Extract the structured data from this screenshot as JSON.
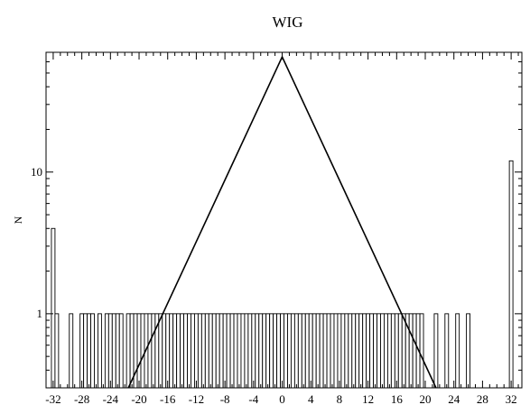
{
  "chart_data": {
    "type": "bar",
    "title": "WIG",
    "xlabel": "",
    "ylabel": "N",
    "yscale": "log",
    "xlim": [
      -33,
      33.5
    ],
    "ylim": [
      0.3,
      70
    ],
    "grid": false,
    "legend": "none",
    "x_ticks": [
      -32,
      -28,
      -24,
      -20,
      -16,
      -12,
      -8,
      -4,
      0,
      4,
      8,
      12,
      16,
      20,
      24,
      28,
      32
    ],
    "x_tick_labels": [
      "-32",
      "-28",
      "-24",
      "-20",
      "-16",
      "-12",
      "-8",
      "-4",
      "0",
      "4",
      "8",
      "12",
      "16",
      "20",
      "24",
      "28",
      "32"
    ],
    "y_tick_labels": [
      {
        "value": 1,
        "label": "1"
      },
      {
        "value": 10,
        "label": "10"
      }
    ],
    "bar_width": 0.5,
    "bars": {
      "x": [
        -32,
        -31.5,
        -29.5,
        -28,
        -27.5,
        -27,
        -26.5,
        -25.5,
        -24.5,
        -24,
        -23.5,
        -23,
        -22.5,
        -21.5,
        -21,
        -20.5,
        -20,
        -19.5,
        -19,
        -18.5,
        -18,
        -17.5,
        -17,
        -16.5,
        -16,
        -15.5,
        -15,
        -14.5,
        -14,
        -13.5,
        -13,
        -12.5,
        -12,
        -11.5,
        -11,
        -10.5,
        -10,
        -9.5,
        -9,
        -8.5,
        -8,
        -7.5,
        -7,
        -6.5,
        -6,
        -5.5,
        -5,
        -4.5,
        -4,
        -3.5,
        -3,
        -2.5,
        -2,
        -1.5,
        -1,
        -0.5,
        0,
        0.5,
        1,
        1.5,
        2,
        2.5,
        3,
        3.5,
        4,
        4.5,
        5,
        5.5,
        6,
        6.5,
        7,
        7.5,
        8,
        8.5,
        9,
        9.5,
        10,
        10.5,
        11,
        11.5,
        12,
        12.5,
        13,
        13.5,
        14,
        14.5,
        15,
        15.5,
        16,
        16.5,
        17,
        17.5,
        18,
        18.5,
        19,
        19.5,
        21.5,
        23,
        24.5,
        26,
        32
      ],
      "values": [
        4,
        1,
        1,
        1,
        1,
        1,
        1,
        1,
        1,
        1,
        1,
        1,
        1,
        1,
        1,
        1,
        1,
        1,
        1,
        1,
        1,
        1,
        1,
        1,
        1,
        1,
        1,
        1,
        1,
        1,
        1,
        1,
        1,
        1,
        1,
        1,
        1,
        1,
        1,
        1,
        1,
        1,
        1,
        1,
        1,
        1,
        1,
        1,
        1,
        1,
        1,
        1,
        1,
        1,
        1,
        1,
        1,
        1,
        1,
        1,
        1,
        1,
        1,
        1,
        1,
        1,
        1,
        1,
        1,
        1,
        1,
        1,
        1,
        1,
        1,
        1,
        1,
        1,
        1,
        1,
        1,
        1,
        1,
        1,
        1,
        1,
        1,
        1,
        1,
        1,
        1,
        1,
        1,
        1,
        1,
        1,
        1,
        1,
        1,
        1,
        12
      ]
    },
    "fit_line": {
      "x": [
        -21.5,
        0,
        21.5
      ],
      "y": [
        0.3,
        65,
        0.3
      ]
    }
  }
}
